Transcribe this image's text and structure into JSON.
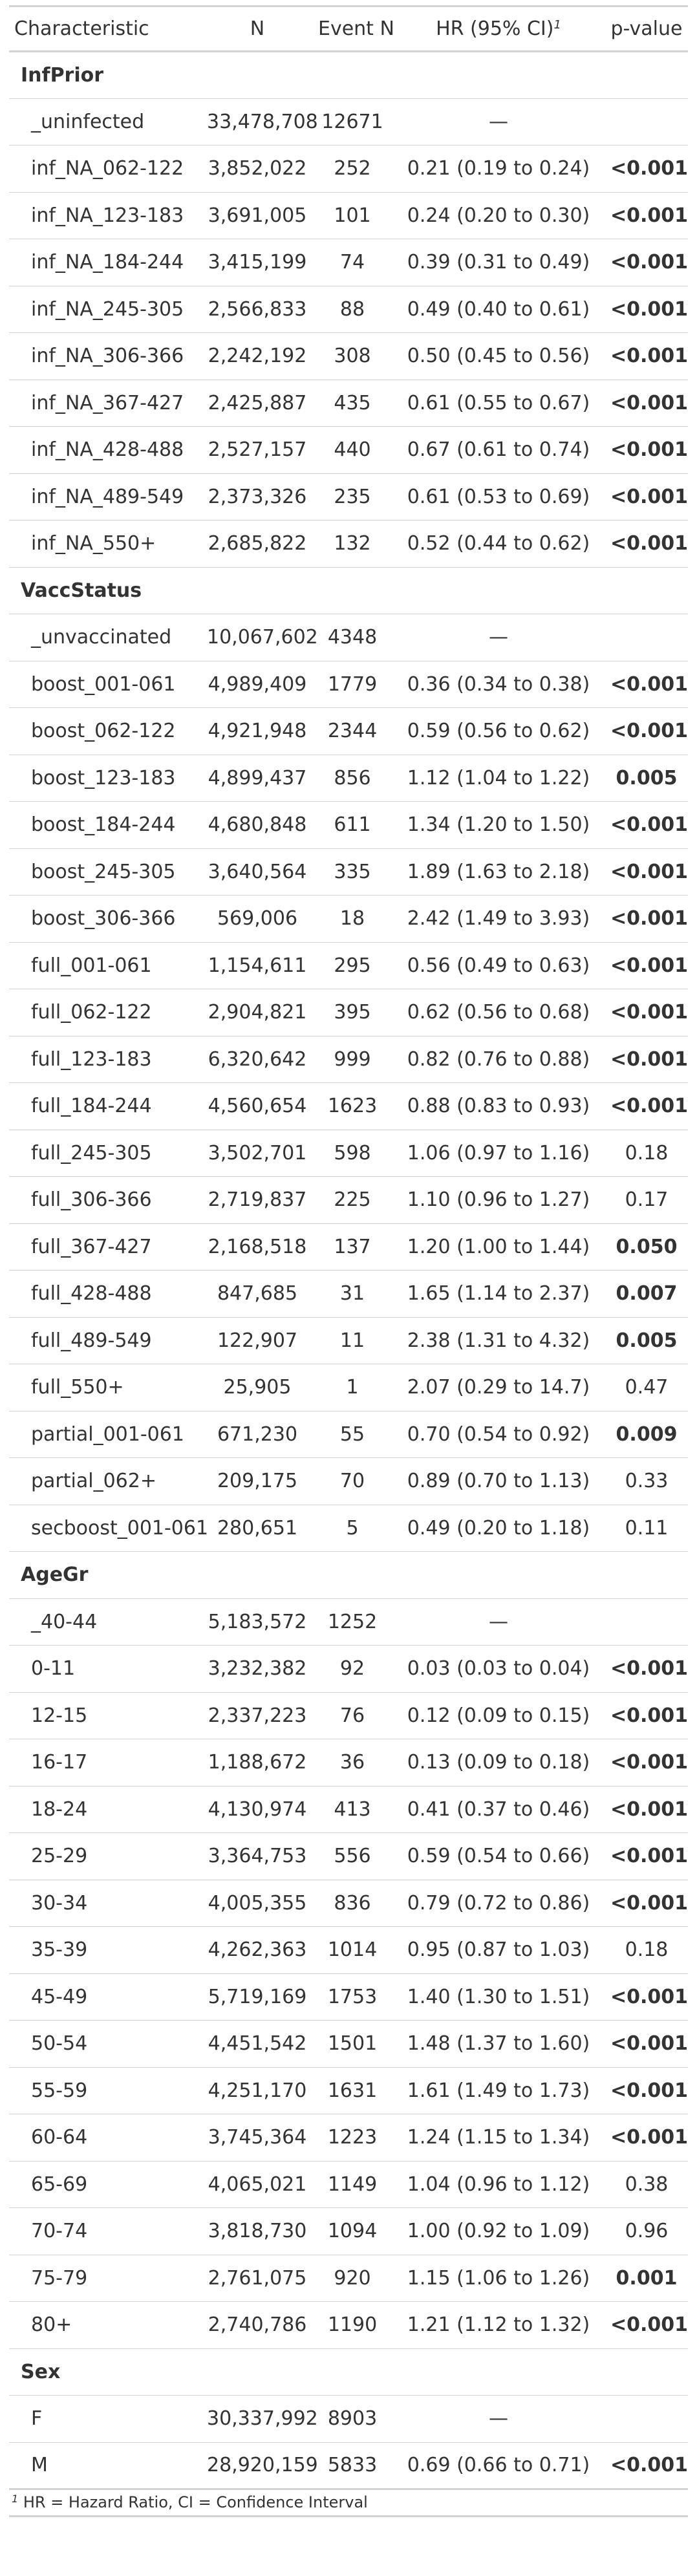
{
  "header": {
    "characteristic": "Characteristic",
    "n": "N",
    "event_n": "Event N",
    "hr": "HR (95% CI)",
    "hr_footnote_mark": "1",
    "pvalue": "p-value"
  },
  "groups": [
    {
      "name": "InfPrior",
      "rows": [
        {
          "label": "_uninfected",
          "n": "33,478,708",
          "event_n": "12671",
          "hr": "—",
          "p": "",
          "p_bold": false
        },
        {
          "label": "inf_NA_062-122",
          "n": "3,852,022",
          "event_n": "252",
          "hr": "0.21 (0.19 to 0.24)",
          "p": "<0.001",
          "p_bold": true
        },
        {
          "label": "inf_NA_123-183",
          "n": "3,691,005",
          "event_n": "101",
          "hr": "0.24 (0.20 to 0.30)",
          "p": "<0.001",
          "p_bold": true
        },
        {
          "label": "inf_NA_184-244",
          "n": "3,415,199",
          "event_n": "74",
          "hr": "0.39 (0.31 to 0.49)",
          "p": "<0.001",
          "p_bold": true
        },
        {
          "label": "inf_NA_245-305",
          "n": "2,566,833",
          "event_n": "88",
          "hr": "0.49 (0.40 to 0.61)",
          "p": "<0.001",
          "p_bold": true
        },
        {
          "label": "inf_NA_306-366",
          "n": "2,242,192",
          "event_n": "308",
          "hr": "0.50 (0.45 to 0.56)",
          "p": "<0.001",
          "p_bold": true
        },
        {
          "label": "inf_NA_367-427",
          "n": "2,425,887",
          "event_n": "435",
          "hr": "0.61 (0.55 to 0.67)",
          "p": "<0.001",
          "p_bold": true
        },
        {
          "label": "inf_NA_428-488",
          "n": "2,527,157",
          "event_n": "440",
          "hr": "0.67 (0.61 to 0.74)",
          "p": "<0.001",
          "p_bold": true
        },
        {
          "label": "inf_NA_489-549",
          "n": "2,373,326",
          "event_n": "235",
          "hr": "0.61 (0.53 to 0.69)",
          "p": "<0.001",
          "p_bold": true
        },
        {
          "label": "inf_NA_550+",
          "n": "2,685,822",
          "event_n": "132",
          "hr": "0.52 (0.44 to 0.62)",
          "p": "<0.001",
          "p_bold": true
        }
      ]
    },
    {
      "name": "VaccStatus",
      "rows": [
        {
          "label": "_unvaccinated",
          "n": "10,067,602",
          "event_n": "4348",
          "hr": "—",
          "p": "",
          "p_bold": false
        },
        {
          "label": "boost_001-061",
          "n": "4,989,409",
          "event_n": "1779",
          "hr": "0.36 (0.34 to 0.38)",
          "p": "<0.001",
          "p_bold": true
        },
        {
          "label": "boost_062-122",
          "n": "4,921,948",
          "event_n": "2344",
          "hr": "0.59 (0.56 to 0.62)",
          "p": "<0.001",
          "p_bold": true
        },
        {
          "label": "boost_123-183",
          "n": "4,899,437",
          "event_n": "856",
          "hr": "1.12 (1.04 to 1.22)",
          "p": "0.005",
          "p_bold": true
        },
        {
          "label": "boost_184-244",
          "n": "4,680,848",
          "event_n": "611",
          "hr": "1.34 (1.20 to 1.50)",
          "p": "<0.001",
          "p_bold": true
        },
        {
          "label": "boost_245-305",
          "n": "3,640,564",
          "event_n": "335",
          "hr": "1.89 (1.63 to 2.18)",
          "p": "<0.001",
          "p_bold": true
        },
        {
          "label": "boost_306-366",
          "n": "569,006",
          "event_n": "18",
          "hr": "2.42 (1.49 to 3.93)",
          "p": "<0.001",
          "p_bold": true
        },
        {
          "label": "full_001-061",
          "n": "1,154,611",
          "event_n": "295",
          "hr": "0.56 (0.49 to 0.63)",
          "p": "<0.001",
          "p_bold": true
        },
        {
          "label": "full_062-122",
          "n": "2,904,821",
          "event_n": "395",
          "hr": "0.62 (0.56 to 0.68)",
          "p": "<0.001",
          "p_bold": true
        },
        {
          "label": "full_123-183",
          "n": "6,320,642",
          "event_n": "999",
          "hr": "0.82 (0.76 to 0.88)",
          "p": "<0.001",
          "p_bold": true
        },
        {
          "label": "full_184-244",
          "n": "4,560,654",
          "event_n": "1623",
          "hr": "0.88 (0.83 to 0.93)",
          "p": "<0.001",
          "p_bold": true
        },
        {
          "label": "full_245-305",
          "n": "3,502,701",
          "event_n": "598",
          "hr": "1.06 (0.97 to 1.16)",
          "p": "0.18",
          "p_bold": false
        },
        {
          "label": "full_306-366",
          "n": "2,719,837",
          "event_n": "225",
          "hr": "1.10 (0.96 to 1.27)",
          "p": "0.17",
          "p_bold": false
        },
        {
          "label": "full_367-427",
          "n": "2,168,518",
          "event_n": "137",
          "hr": "1.20 (1.00 to 1.44)",
          "p": "0.050",
          "p_bold": true
        },
        {
          "label": "full_428-488",
          "n": "847,685",
          "event_n": "31",
          "hr": "1.65 (1.14 to 2.37)",
          "p": "0.007",
          "p_bold": true
        },
        {
          "label": "full_489-549",
          "n": "122,907",
          "event_n": "11",
          "hr": "2.38 (1.31 to 4.32)",
          "p": "0.005",
          "p_bold": true
        },
        {
          "label": "full_550+",
          "n": "25,905",
          "event_n": "1",
          "hr": "2.07 (0.29 to 14.7)",
          "p": "0.47",
          "p_bold": false
        },
        {
          "label": "partial_001-061",
          "n": "671,230",
          "event_n": "55",
          "hr": "0.70 (0.54 to 0.92)",
          "p": "0.009",
          "p_bold": true
        },
        {
          "label": "partial_062+",
          "n": "209,175",
          "event_n": "70",
          "hr": "0.89 (0.70 to 1.13)",
          "p": "0.33",
          "p_bold": false
        },
        {
          "label": "secboost_001-061",
          "n": "280,651",
          "event_n": "5",
          "hr": "0.49 (0.20 to 1.18)",
          "p": "0.11",
          "p_bold": false
        }
      ]
    },
    {
      "name": "AgeGr",
      "rows": [
        {
          "label": "_40-44",
          "n": "5,183,572",
          "event_n": "1252",
          "hr": "—",
          "p": "",
          "p_bold": false
        },
        {
          "label": "0-11",
          "n": "3,232,382",
          "event_n": "92",
          "hr": "0.03 (0.03 to 0.04)",
          "p": "<0.001",
          "p_bold": true
        },
        {
          "label": "12-15",
          "n": "2,337,223",
          "event_n": "76",
          "hr": "0.12 (0.09 to 0.15)",
          "p": "<0.001",
          "p_bold": true
        },
        {
          "label": "16-17",
          "n": "1,188,672",
          "event_n": "36",
          "hr": "0.13 (0.09 to 0.18)",
          "p": "<0.001",
          "p_bold": true
        },
        {
          "label": "18-24",
          "n": "4,130,974",
          "event_n": "413",
          "hr": "0.41 (0.37 to 0.46)",
          "p": "<0.001",
          "p_bold": true
        },
        {
          "label": "25-29",
          "n": "3,364,753",
          "event_n": "556",
          "hr": "0.59 (0.54 to 0.66)",
          "p": "<0.001",
          "p_bold": true
        },
        {
          "label": "30-34",
          "n": "4,005,355",
          "event_n": "836",
          "hr": "0.79 (0.72 to 0.86)",
          "p": "<0.001",
          "p_bold": true
        },
        {
          "label": "35-39",
          "n": "4,262,363",
          "event_n": "1014",
          "hr": "0.95 (0.87 to 1.03)",
          "p": "0.18",
          "p_bold": false
        },
        {
          "label": "45-49",
          "n": "5,719,169",
          "event_n": "1753",
          "hr": "1.40 (1.30 to 1.51)",
          "p": "<0.001",
          "p_bold": true
        },
        {
          "label": "50-54",
          "n": "4,451,542",
          "event_n": "1501",
          "hr": "1.48 (1.37 to 1.60)",
          "p": "<0.001",
          "p_bold": true
        },
        {
          "label": "55-59",
          "n": "4,251,170",
          "event_n": "1631",
          "hr": "1.61 (1.49 to 1.73)",
          "p": "<0.001",
          "p_bold": true
        },
        {
          "label": "60-64",
          "n": "3,745,364",
          "event_n": "1223",
          "hr": "1.24 (1.15 to 1.34)",
          "p": "<0.001",
          "p_bold": true
        },
        {
          "label": "65-69",
          "n": "4,065,021",
          "event_n": "1149",
          "hr": "1.04 (0.96 to 1.12)",
          "p": "0.38",
          "p_bold": false
        },
        {
          "label": "70-74",
          "n": "3,818,730",
          "event_n": "1094",
          "hr": "1.00 (0.92 to 1.09)",
          "p": "0.96",
          "p_bold": false
        },
        {
          "label": "75-79",
          "n": "2,761,075",
          "event_n": "920",
          "hr": "1.15 (1.06 to 1.26)",
          "p": "0.001",
          "p_bold": true
        },
        {
          "label": "80+",
          "n": "2,740,786",
          "event_n": "1190",
          "hr": "1.21 (1.12 to 1.32)",
          "p": "<0.001",
          "p_bold": true
        }
      ]
    },
    {
      "name": "Sex",
      "rows": [
        {
          "label": "F",
          "n": "30,337,992",
          "event_n": "8903",
          "hr": "—",
          "p": "",
          "p_bold": false
        },
        {
          "label": "M",
          "n": "28,920,159",
          "event_n": "5833",
          "hr": "0.69 (0.66 to 0.71)",
          "p": "<0.001",
          "p_bold": true
        }
      ]
    }
  ],
  "footnote": {
    "mark": "1",
    "text": "HR = Hazard Ratio, CI = Confidence Interval"
  }
}
